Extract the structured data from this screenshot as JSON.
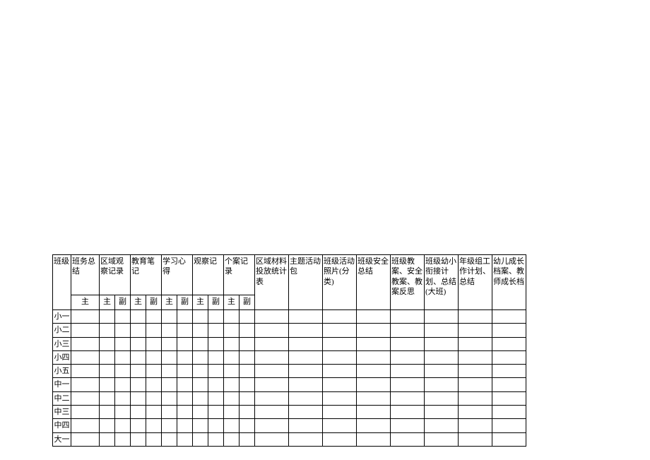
{
  "table": {
    "rowHeader": "班级",
    "singleMain": {
      "label": "班务总结",
      "sub": "主"
    },
    "pairHeaders": [
      {
        "label": "区域观察记录",
        "subs": [
          "主",
          "副"
        ]
      },
      {
        "label": "教育笔记",
        "subs": [
          "主",
          "副"
        ]
      },
      {
        "label": "学习心得",
        "subs": [
          "主",
          "副"
        ]
      },
      {
        "label": "观察记",
        "subs": [
          "主",
          "副"
        ]
      },
      {
        "label": "个案记录",
        "subs": [
          "主",
          "副"
        ]
      }
    ],
    "wideHeaders": [
      "区域材料投放统计表",
      "主题活动包",
      "班级活动照片(分类)",
      "班级安全总结",
      "班级教案、安全教案、教案反思",
      "班级幼小衔接计划、总结(大班)",
      "年级组工作计划、总结",
      "幼儿成长档案、教师成长档"
    ],
    "rows": [
      "小一",
      "小二",
      "小三",
      "小四",
      "小五",
      "中一",
      "中二",
      "中三",
      "中四",
      "大一"
    ]
  }
}
